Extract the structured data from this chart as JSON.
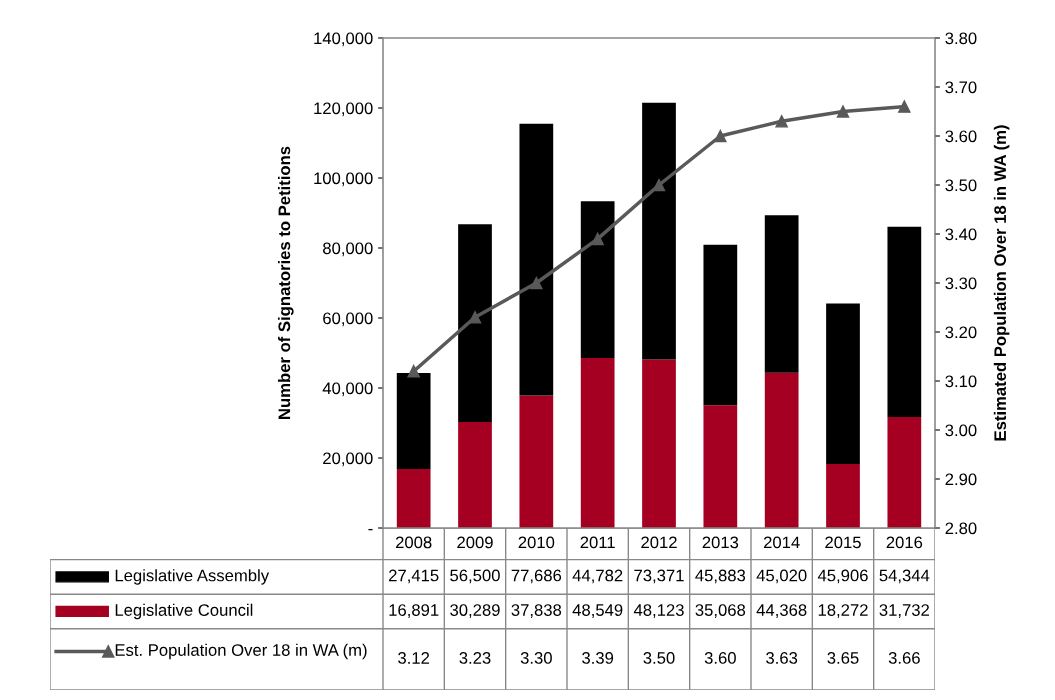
{
  "chart_data": {
    "type": "bar",
    "stacked": true,
    "ylabel": "Number of Signatories to Petitions",
    "y2label": "Estimated Population Over 18 in WA (m)",
    "categories": [
      "2008",
      "2009",
      "2010",
      "2011",
      "2012",
      "2013",
      "2014",
      "2015",
      "2016"
    ],
    "series": [
      {
        "name": "Legislative Council",
        "color": "#a50021",
        "values": [
          16891,
          30289,
          37838,
          48549,
          48123,
          35068,
          44368,
          18272,
          31732
        ],
        "value_labels": [
          "16,891",
          "30,289",
          "37,838",
          "48,549",
          "48,123",
          "35,068",
          "44,368",
          "18,272",
          "31,732"
        ]
      },
      {
        "name": "Legislative Assembly",
        "color": "#000000",
        "values": [
          27415,
          56500,
          77686,
          44782,
          73371,
          45883,
          45020,
          45906,
          54344
        ],
        "value_labels": [
          "27,415",
          "56,500",
          "77,686",
          "44,782",
          "73,371",
          "45,883",
          "45,020",
          "45,906",
          "54,344"
        ]
      },
      {
        "name": "Est. Population Over 18 in WA (m)",
        "type": "line",
        "axis": "y2",
        "color": "#595959",
        "marker": "triangle",
        "values": [
          3.12,
          3.23,
          3.3,
          3.39,
          3.5,
          3.6,
          3.63,
          3.65,
          3.66
        ],
        "value_labels": [
          "3.12",
          "3.23",
          "3.30",
          "3.39",
          "3.50",
          "3.60",
          "3.63",
          "3.65",
          "3.66"
        ]
      }
    ],
    "ylim": [
      0,
      140000
    ],
    "yticks": [
      {
        "value": 0,
        "label": "-"
      },
      {
        "value": 20000,
        "label": "20,000"
      },
      {
        "value": 40000,
        "label": "40,000"
      },
      {
        "value": 60000,
        "label": "60,000"
      },
      {
        "value": 80000,
        "label": "80,000"
      },
      {
        "value": 100000,
        "label": "100,000"
      },
      {
        "value": 120000,
        "label": "120,000"
      },
      {
        "value": 140000,
        "label": "140,000"
      }
    ],
    "y2lim": [
      2.8,
      3.8
    ],
    "y2ticks": [
      {
        "value": 2.8,
        "label": "2.80"
      },
      {
        "value": 2.9,
        "label": "2.90"
      },
      {
        "value": 3.0,
        "label": "3.00"
      },
      {
        "value": 3.1,
        "label": "3.10"
      },
      {
        "value": 3.2,
        "label": "3.20"
      },
      {
        "value": 3.3,
        "label": "3.30"
      },
      {
        "value": 3.4,
        "label": "3.40"
      },
      {
        "value": 3.5,
        "label": "3.50"
      },
      {
        "value": 3.6,
        "label": "3.60"
      },
      {
        "value": 3.7,
        "label": "3.70"
      },
      {
        "value": 3.8,
        "label": "3.80"
      }
    ],
    "legend": "bottom"
  }
}
